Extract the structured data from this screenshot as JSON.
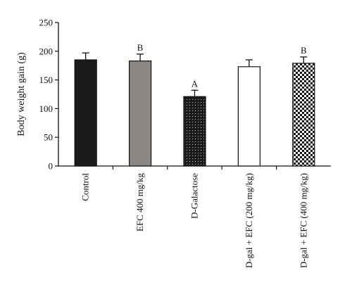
{
  "chart_data": {
    "type": "bar",
    "title": "",
    "xlabel": "",
    "ylabel": "Body weight gain (g)",
    "ylim": [
      0,
      250
    ],
    "yticks": [
      0,
      50,
      100,
      150,
      200,
      250
    ],
    "ytick_labels": [
      "0",
      "50",
      "100",
      "150",
      "200",
      "250"
    ],
    "grid": false,
    "categories": [
      "Control",
      "EFC 400 mg/kg",
      "D-Galactose",
      "D-gal + EFC (200 mg/kg)",
      "D-gal + EFC (400 mg/kg)"
    ],
    "values": [
      185,
      183,
      121,
      173,
      179
    ],
    "errors": [
      12,
      12,
      11,
      12,
      11
    ],
    "significance": [
      "",
      "B",
      "A",
      "",
      "B"
    ],
    "bar_styles": [
      {
        "fill": "#1a1a1a",
        "pattern": "solid"
      },
      {
        "fill": "#8c8785",
        "pattern": "solid"
      },
      {
        "fill": "#1a1a1a",
        "pattern": "dots"
      },
      {
        "fill": "#ffffff",
        "pattern": "none"
      },
      {
        "fill": "#ffffff",
        "pattern": "checker"
      }
    ]
  }
}
